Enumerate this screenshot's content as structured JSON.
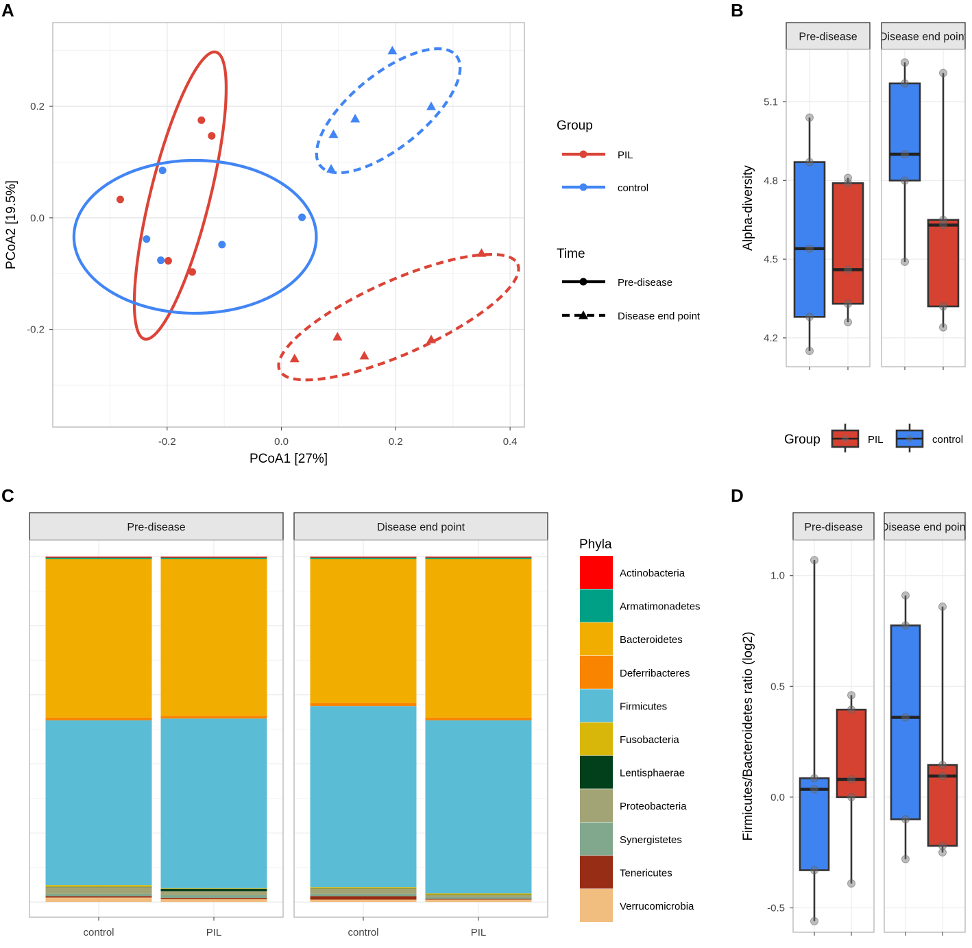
{
  "panel_letters": {
    "a": "A",
    "b": "B",
    "c": "C",
    "d": "D"
  },
  "colors": {
    "pil": "#DB4437",
    "control": "#4285F4",
    "box_pil": "#D64232",
    "box_control": "#3F83F0",
    "grid": "#E6E6E6",
    "strip_bg": "#E6E6E6"
  },
  "chart_data": [
    {
      "id": "A",
      "type": "scatter",
      "title": "",
      "xlabel": "PCoA1   [27%]",
      "ylabel": "PCoA2   [19.5%]",
      "xlim": [
        -0.4,
        0.425
      ],
      "ylim": [
        -0.375,
        0.35
      ],
      "xticks": [
        -0.2,
        0.0,
        0.2,
        0.4
      ],
      "xtick_labels": [
        "-0.2",
        "0.0",
        "0.2",
        "0.4"
      ],
      "yticks": [
        -0.2,
        0.0,
        0.2
      ],
      "ytick_labels": [
        "-0.2",
        "0.0",
        "0.2"
      ],
      "points": [
        {
          "group": "PIL",
          "time": "Pre-disease",
          "x": -0.14,
          "y": 0.175
        },
        {
          "group": "PIL",
          "time": "Pre-disease",
          "x": -0.122,
          "y": 0.147
        },
        {
          "group": "PIL",
          "time": "Pre-disease",
          "x": -0.282,
          "y": 0.033
        },
        {
          "group": "PIL",
          "time": "Pre-disease",
          "x": -0.198,
          "y": -0.077
        },
        {
          "group": "PIL",
          "time": "Pre-disease",
          "x": -0.156,
          "y": -0.097
        },
        {
          "group": "control",
          "time": "Pre-disease",
          "x": -0.208,
          "y": 0.085
        },
        {
          "group": "control",
          "time": "Pre-disease",
          "x": 0.036,
          "y": 0.001
        },
        {
          "group": "control",
          "time": "Pre-disease",
          "x": -0.236,
          "y": -0.038
        },
        {
          "group": "control",
          "time": "Pre-disease",
          "x": -0.104,
          "y": -0.048
        },
        {
          "group": "control",
          "time": "Pre-disease",
          "x": -0.211,
          "y": -0.076
        },
        {
          "group": "control",
          "time": "Disease end point",
          "x": 0.194,
          "y": 0.3
        },
        {
          "group": "control",
          "time": "Disease end point",
          "x": 0.262,
          "y": 0.2
        },
        {
          "group": "control",
          "time": "Disease end point",
          "x": 0.129,
          "y": 0.178
        },
        {
          "group": "control",
          "time": "Disease end point",
          "x": 0.091,
          "y": 0.15
        },
        {
          "group": "control",
          "time": "Disease end point",
          "x": 0.087,
          "y": 0.088
        },
        {
          "group": "PIL",
          "time": "Disease end point",
          "x": 0.35,
          "y": -0.063
        },
        {
          "group": "PIL",
          "time": "Disease end point",
          "x": 0.098,
          "y": -0.213
        },
        {
          "group": "PIL",
          "time": "Disease end point",
          "x": 0.262,
          "y": -0.218
        },
        {
          "group": "PIL",
          "time": "Disease end point",
          "x": 0.145,
          "y": -0.247
        },
        {
          "group": "PIL",
          "time": "Disease end point",
          "x": 0.023,
          "y": -0.252
        }
      ],
      "ellipses": [
        {
          "group": "PIL",
          "time": "Pre-disease",
          "cx": -0.177,
          "cy": 0.04,
          "rx": 0.052,
          "ry": 0.265,
          "angle": 14
        },
        {
          "group": "control",
          "time": "Pre-disease",
          "cx": -0.151,
          "cy": -0.034,
          "rx": 0.212,
          "ry": 0.137,
          "angle": 0
        },
        {
          "group": "control",
          "time": "Disease end point",
          "cx": 0.187,
          "cy": 0.192,
          "rx": 0.153,
          "ry": 0.066,
          "angle": -39
        },
        {
          "group": "PIL",
          "time": "Disease end point",
          "cx": 0.205,
          "cy": -0.178,
          "rx": 0.228,
          "ry": 0.066,
          "angle": -24
        }
      ],
      "legend": {
        "group_title": "Group",
        "group_entries": [
          "PIL",
          "control"
        ],
        "time_title": "Time",
        "time_entries": [
          "Pre-disease",
          "Disease end point"
        ]
      }
    },
    {
      "id": "B",
      "type": "box",
      "ylabel": "Alpha-diversity",
      "ylim": [
        4.09,
        5.3
      ],
      "yticks": [
        4.2,
        4.5,
        4.8,
        5.1
      ],
      "ytick_labels": [
        "4.2",
        "4.5",
        "4.8",
        "5.1"
      ],
      "facets": [
        "Pre-disease",
        "Disease end point"
      ],
      "groups": [
        {
          "facet": "Pre-disease",
          "group": "control",
          "stats": {
            "min": 4.15,
            "q1": 4.28,
            "median": 4.54,
            "q3": 4.87,
            "max": 5.04
          },
          "points": [
            4.15,
            4.28,
            4.54,
            4.87,
            5.04
          ]
        },
        {
          "facet": "Pre-disease",
          "group": "PIL",
          "stats": {
            "min": 4.26,
            "q1": 4.33,
            "median": 4.46,
            "q3": 4.79,
            "max": 4.81
          },
          "points": [
            4.26,
            4.33,
            4.46,
            4.79,
            4.81
          ]
        },
        {
          "facet": "Disease end point",
          "group": "control",
          "stats": {
            "min": 4.49,
            "q1": 4.8,
            "median": 4.9,
            "q3": 5.17,
            "max": 5.25
          },
          "points": [
            4.49,
            4.8,
            4.9,
            5.17,
            5.25
          ]
        },
        {
          "facet": "Disease end point",
          "group": "PIL",
          "stats": {
            "min": 4.24,
            "q1": 4.32,
            "median": 4.63,
            "q3": 4.65,
            "max": 5.21
          },
          "points": [
            4.24,
            4.32,
            4.63,
            4.65,
            5.21
          ]
        }
      ],
      "legend": {
        "title": "Group",
        "entries": [
          "PIL",
          "control"
        ]
      }
    },
    {
      "id": "C",
      "type": "stacked-bar",
      "facets": [
        "Pre-disease",
        "Disease end point"
      ],
      "categories": [
        "control",
        "PIL"
      ],
      "series": [
        {
          "name": "Actinobacteria",
          "color": "#FF0000"
        },
        {
          "name": "Armatimonadetes",
          "color": "#00A087"
        },
        {
          "name": "Bacteroidetes",
          "color": "#F2AE00"
        },
        {
          "name": "Deferribacteres",
          "color": "#F98400"
        },
        {
          "name": "Firmicutes",
          "color": "#5BBCD6"
        },
        {
          "name": "Fusobacteria",
          "color": "#D8B70A"
        },
        {
          "name": "Lentisphaerae",
          "color": "#02401B"
        },
        {
          "name": "Proteobacteria",
          "color": "#A2A475"
        },
        {
          "name": "Synergistetes",
          "color": "#81A88D"
        },
        {
          "name": "Tenericutes",
          "color": "#972D15"
        },
        {
          "name": "Verrucomicrobia",
          "color": "#F2BE80"
        }
      ],
      "bars": [
        {
          "facet": "Pre-disease",
          "category": "control",
          "values": [
            0.003,
            0.004,
            0.459,
            0.008,
            0.477,
            0.005,
            0.001,
            0.019,
            0.007,
            0.004,
            0.013
          ]
        },
        {
          "facet": "Pre-disease",
          "category": "PIL",
          "values": [
            0.003,
            0.004,
            0.454,
            0.008,
            0.491,
            0.002,
            0.007,
            0.011,
            0.008,
            0.003,
            0.009
          ]
        },
        {
          "facet": "Disease end point",
          "category": "control",
          "values": [
            0.003,
            0.004,
            0.417,
            0.009,
            0.524,
            0.004,
            0.001,
            0.014,
            0.007,
            0.01,
            0.007
          ]
        },
        {
          "facet": "Disease end point",
          "category": "PIL",
          "values": [
            0.003,
            0.004,
            0.459,
            0.008,
            0.501,
            0.004,
            0.001,
            0.006,
            0.005,
            0.002,
            0.007
          ]
        }
      ],
      "legend": {
        "title": "Phyla"
      }
    },
    {
      "id": "D",
      "type": "box",
      "ylabel": "Firmicutes/Bacteroidetes ratio (log2)",
      "ylim": [
        -0.61,
        1.16
      ],
      "yticks": [
        -0.5,
        0.0,
        0.5,
        1.0
      ],
      "ytick_labels": [
        "-0.5",
        "0.0",
        "0.5",
        "1.0"
      ],
      "facets": [
        "Pre-disease",
        "Disease end point"
      ],
      "groups": [
        {
          "facet": "Pre-disease",
          "group": "control",
          "stats": {
            "min": -0.56,
            "q1": -0.33,
            "median": 0.035,
            "q3": 0.085,
            "max": 1.07
          },
          "points": [
            -0.56,
            -0.33,
            0.035,
            0.085,
            1.07
          ]
        },
        {
          "facet": "Pre-disease",
          "group": "PIL",
          "stats": {
            "min": -0.39,
            "q1": 0.0,
            "median": 0.08,
            "q3": 0.395,
            "max": 0.46
          },
          "points": [
            -0.39,
            0.0,
            0.08,
            0.395,
            0.46
          ]
        },
        {
          "facet": "Disease end point",
          "group": "control",
          "stats": {
            "min": -0.28,
            "q1": -0.1,
            "median": 0.36,
            "q3": 0.775,
            "max": 0.91
          },
          "points": [
            -0.28,
            -0.1,
            0.36,
            0.775,
            0.91
          ]
        },
        {
          "facet": "Disease end point",
          "group": "PIL",
          "stats": {
            "min": -0.25,
            "q1": -0.22,
            "median": 0.095,
            "q3": 0.145,
            "max": 0.86
          },
          "points": [
            -0.25,
            -0.22,
            0.095,
            0.145,
            0.86
          ]
        }
      ]
    }
  ]
}
